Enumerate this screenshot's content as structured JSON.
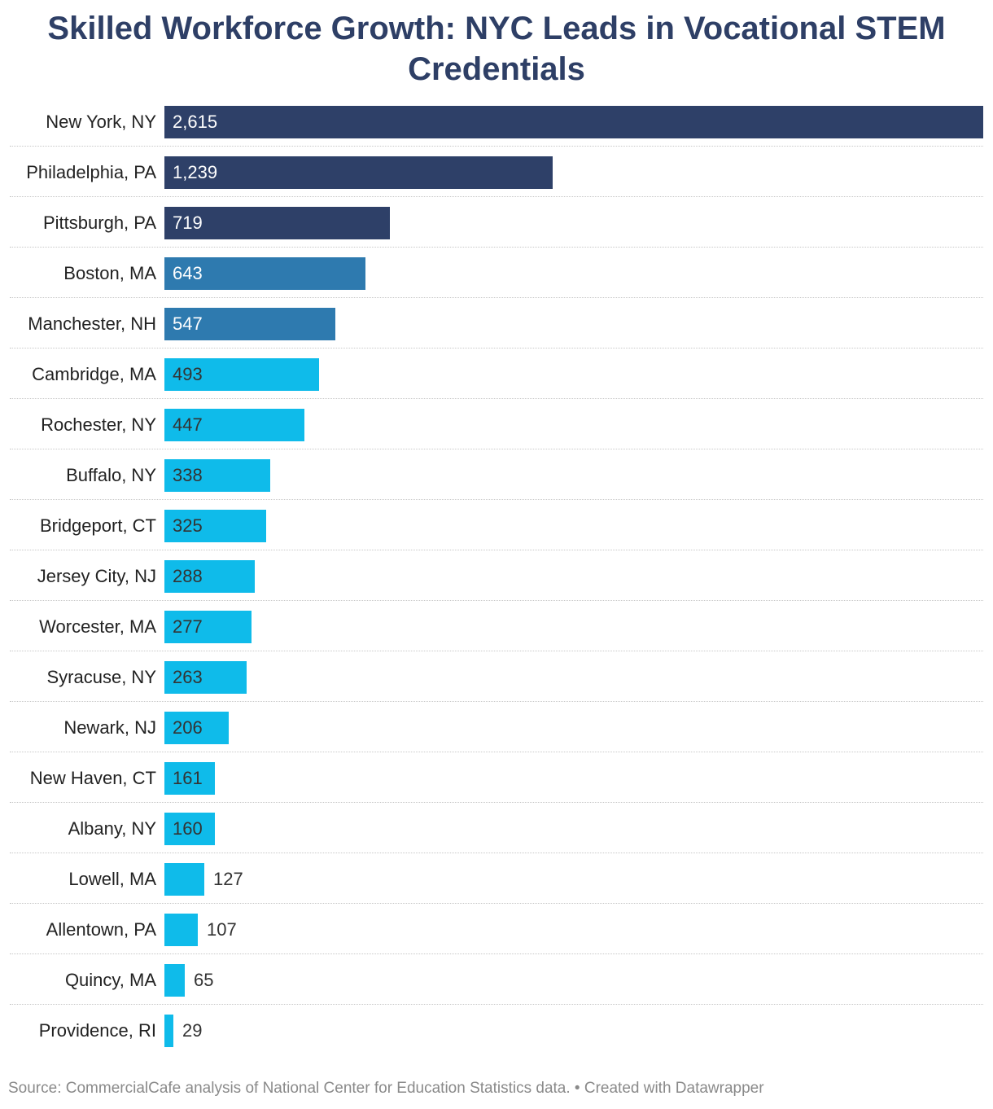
{
  "title": "Skilled Workforce Growth: NYC Leads in Vocational STEM Credentials",
  "source": "Source: CommercialCafe analysis of National Center for Education Statistics data. • Created with Datawrapper",
  "colors": {
    "navy": "#2e4068",
    "steel": "#2e7aaf",
    "cyan": "#0fbbea",
    "label_light": "#ffffff",
    "label_dark": "#333333"
  },
  "chart_data": {
    "type": "bar",
    "orientation": "horizontal",
    "title": "Skilled Workforce Growth: NYC Leads in Vocational STEM Credentials",
    "categories": [
      "New York, NY",
      "Philadelphia, PA",
      "Pittsburgh, PA",
      "Boston, MA",
      "Manchester, NH",
      "Cambridge, MA",
      "Rochester, NY",
      "Buffalo, NY",
      "Bridgeport, CT",
      "Jersey City, NJ",
      "Worcester, MA",
      "Syracuse, NY",
      "Newark, NJ",
      "New Haven, CT",
      "Albany, NY",
      "Lowell, MA",
      "Allentown, PA",
      "Quincy, MA",
      "Providence, RI"
    ],
    "values": [
      2615,
      1239,
      719,
      643,
      547,
      493,
      447,
      338,
      325,
      288,
      277,
      263,
      206,
      161,
      160,
      127,
      107,
      65,
      29
    ],
    "value_labels": [
      "2,615",
      "1,239",
      "719",
      "643",
      "547",
      "493",
      "447",
      "338",
      "325",
      "288",
      "277",
      "263",
      "206",
      "161",
      "160",
      "127",
      "107",
      "65",
      "29"
    ],
    "bar_colors": [
      "navy",
      "navy",
      "navy",
      "steel",
      "steel",
      "cyan",
      "cyan",
      "cyan",
      "cyan",
      "cyan",
      "cyan",
      "cyan",
      "cyan",
      "cyan",
      "cyan",
      "cyan",
      "cyan",
      "cyan",
      "cyan"
    ],
    "xlim": [
      0,
      2615
    ],
    "xlabel": "",
    "ylabel": "",
    "grid": false
  }
}
